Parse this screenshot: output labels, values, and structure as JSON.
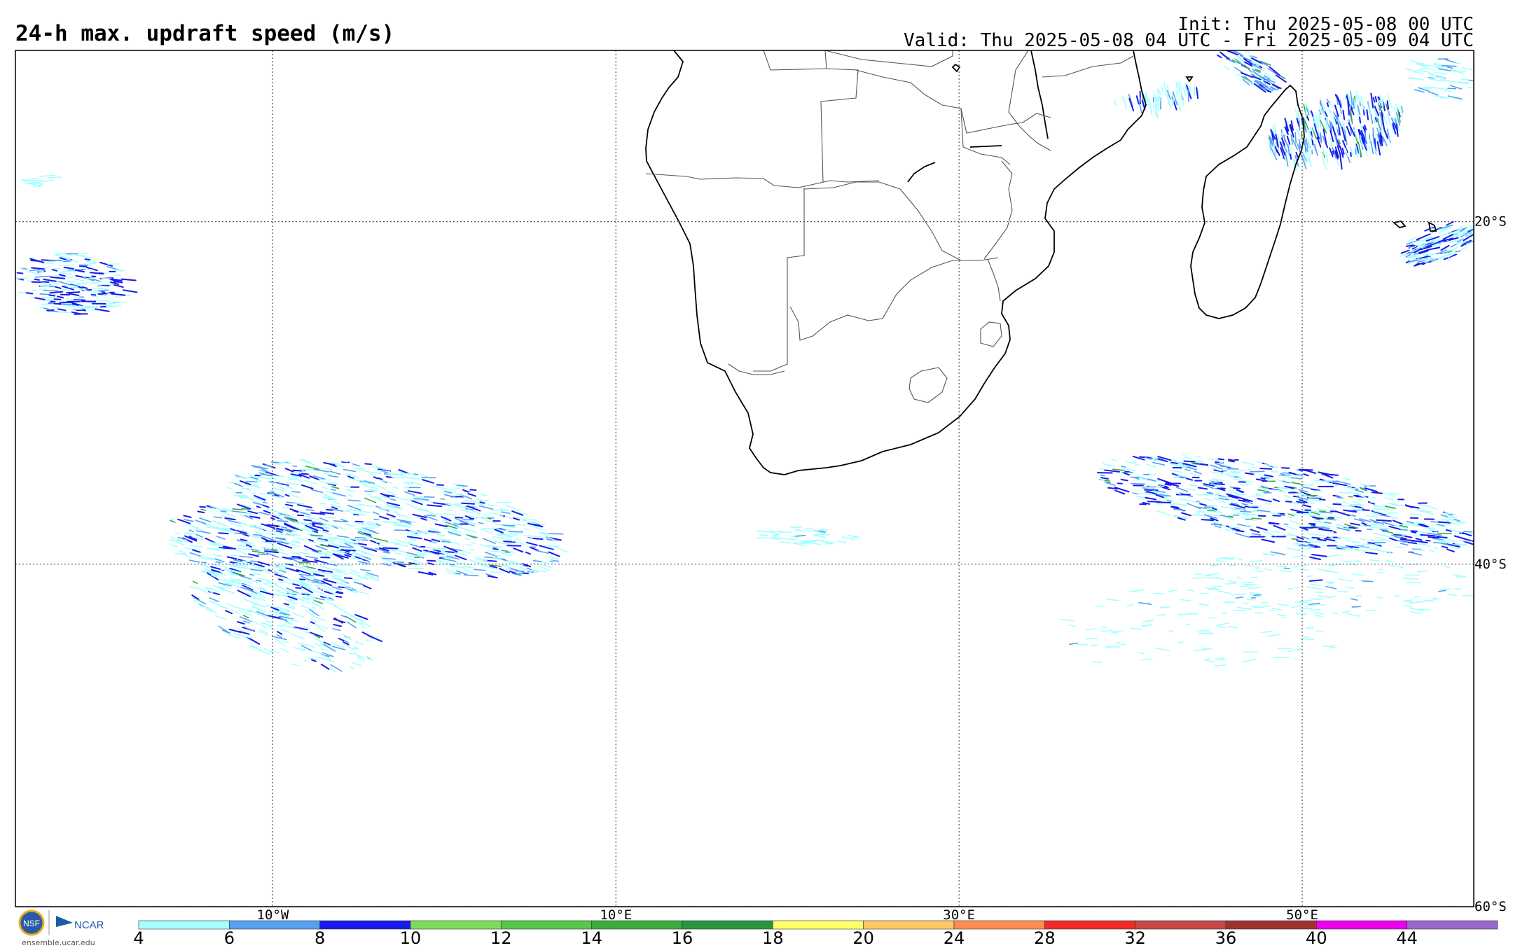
{
  "header": {
    "title": "24-h max. updraft speed (m/s)",
    "init": "Init: Thu 2025-05-08 00 UTC",
    "valid": "Valid: Thu 2025-05-08 04 UTC - Fri 2025-05-09 04 UTC"
  },
  "map": {
    "lon_range": [
      -25,
      60
    ],
    "lat_range": [
      -60,
      -10
    ],
    "lon_labels": [
      "10°W",
      "10°E",
      "30°E",
      "50°E"
    ],
    "lat_labels": [
      "20°S",
      "40°S",
      "60°S"
    ],
    "grid_style": "dotted"
  },
  "colorbar": {
    "ticks": [
      "4",
      "6",
      "8",
      "10",
      "12",
      "14",
      "16",
      "18",
      "20",
      "24",
      "28",
      "32",
      "36",
      "40",
      "44"
    ],
    "colors": [
      "#a6ffff",
      "#55a0f0",
      "#1a1aee",
      "#7ddd5a",
      "#55c848",
      "#3aab3c",
      "#289640",
      "#ffff66",
      "#ffc864",
      "#ff8c50",
      "#f52828",
      "#c84646",
      "#a03232",
      "#ee00ee",
      "#9966cc"
    ]
  },
  "logos": {
    "nsf": "NSF",
    "ncar": "NCAR",
    "site": "ensemble.ucar.edu"
  }
}
